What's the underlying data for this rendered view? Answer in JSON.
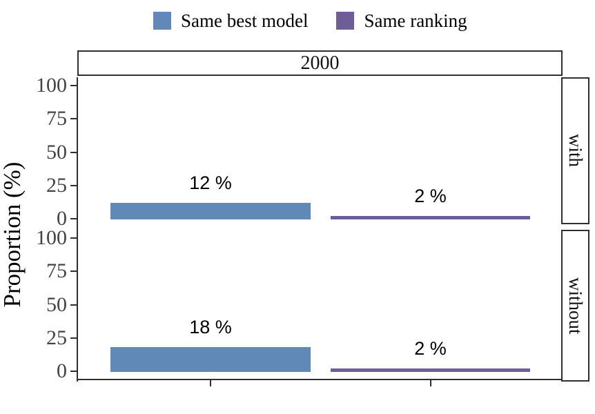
{
  "colors": {
    "blue": "#6189B7",
    "purple": "#6E5D96",
    "axis": "#2E2E2E",
    "tick_label": "#434343",
    "text": "#000000"
  },
  "legend": {
    "items": [
      {
        "label": "Same best model",
        "color": "#6189B7"
      },
      {
        "label": "Same ranking",
        "color": "#6E5D96"
      }
    ]
  },
  "top_strip": {
    "label": "2000"
  },
  "y_axis": {
    "title": "Proportion (%)",
    "tick_labels": [
      "100",
      "75",
      "50",
      "25",
      "0"
    ]
  },
  "facets": [
    {
      "strip_label": "with",
      "bars": [
        {
          "category": "Same best model",
          "value": 12,
          "label": "12 %",
          "color": "#6189B7"
        },
        {
          "category": "Same ranking",
          "value": 2,
          "label": "2 %",
          "color": "#6E5D96"
        }
      ]
    },
    {
      "strip_label": "without",
      "bars": [
        {
          "category": "Same best model",
          "value": 18,
          "label": "18 %",
          "color": "#6189B7"
        },
        {
          "category": "Same ranking",
          "value": 2,
          "label": "2 %",
          "color": "#6E5D96"
        }
      ]
    }
  ],
  "chart_data": {
    "type": "bar",
    "title": "",
    "facet_column_label": "2000",
    "facet_rows": [
      "with",
      "without"
    ],
    "categories": [
      "Same best model",
      "Same ranking"
    ],
    "series": [
      {
        "name": "with",
        "values": [
          12,
          2
        ],
        "data_labels": [
          "12 %",
          "2 %"
        ]
      },
      {
        "name": "without",
        "values": [
          18,
          2
        ],
        "data_labels": [
          "18 %",
          "2 %"
        ]
      }
    ],
    "ylabel": "Proportion (%)",
    "ylim": [
      0,
      100
    ],
    "yticks": [
      0,
      25,
      50,
      75,
      100
    ],
    "xticklabels": [],
    "legend_entries": [
      "Same best model",
      "Same ranking"
    ],
    "legend_position": "top",
    "grid": false,
    "bar_colors": [
      "#6189B7",
      "#6E5D96"
    ]
  }
}
